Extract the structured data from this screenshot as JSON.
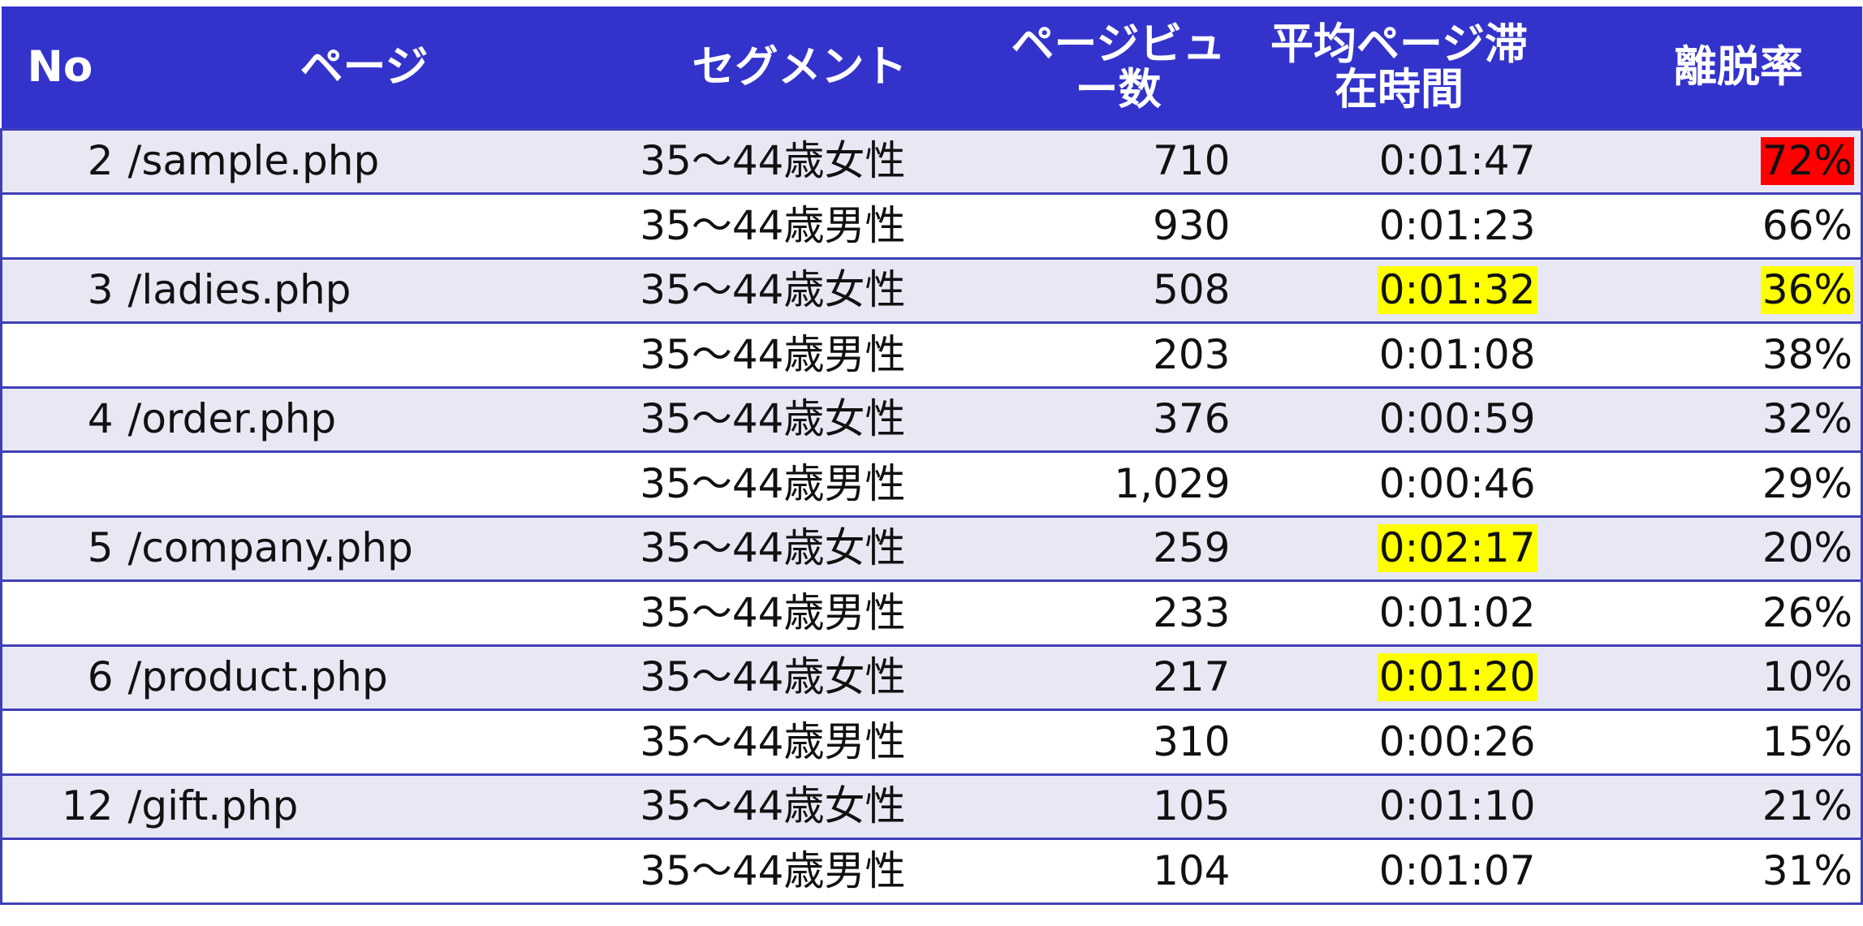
{
  "header": {
    "no": "No",
    "page": "ページ",
    "segment": "セグメント",
    "pageviews_line1": "ページビュ",
    "pageviews_line2": "ー数",
    "avg_time_line1": "平均ページ滞",
    "avg_time_line2": "在時間",
    "bounce": "離脱率"
  },
  "rows": [
    {
      "no": "2",
      "page": "/sample.php",
      "segment": "35～44歳女性",
      "pageviews": "710",
      "avg_time": "0:01:47",
      "bounce": "72%",
      "avg_highlight": "",
      "bounce_highlight": "#ff0000"
    },
    {
      "no": "",
      "page": "",
      "segment": "35～44歳男性",
      "pageviews": "930",
      "avg_time": "0:01:23",
      "bounce": "66%",
      "avg_highlight": "",
      "bounce_highlight": ""
    },
    {
      "no": "3",
      "page": "/ladies.php",
      "segment": "35～44歳女性",
      "pageviews": "508",
      "avg_time": "0:01:32",
      "bounce": "36%",
      "avg_highlight": "#ffff00",
      "bounce_highlight": "#ffff00"
    },
    {
      "no": "",
      "page": "",
      "segment": "35～44歳男性",
      "pageviews": "203",
      "avg_time": "0:01:08",
      "bounce": "38%",
      "avg_highlight": "",
      "bounce_highlight": ""
    },
    {
      "no": "4",
      "page": "/order.php",
      "segment": "35～44歳女性",
      "pageviews": "376",
      "avg_time": "0:00:59",
      "bounce": "32%",
      "avg_highlight": "",
      "bounce_highlight": ""
    },
    {
      "no": "",
      "page": "",
      "segment": "35～44歳男性",
      "pageviews": "1,029",
      "avg_time": "0:00:46",
      "bounce": "29%",
      "avg_highlight": "",
      "bounce_highlight": ""
    },
    {
      "no": "5",
      "page": "/company.php",
      "segment": "35～44歳女性",
      "pageviews": "259",
      "avg_time": "0:02:17",
      "bounce": "20%",
      "avg_highlight": "#ffff00",
      "bounce_highlight": ""
    },
    {
      "no": "",
      "page": "",
      "segment": "35～44歳男性",
      "pageviews": "233",
      "avg_time": "0:01:02",
      "bounce": "26%",
      "avg_highlight": "",
      "bounce_highlight": ""
    },
    {
      "no": "6",
      "page": "/product.php",
      "segment": "35～44歳女性",
      "pageviews": "217",
      "avg_time": "0:01:20",
      "bounce": "10%",
      "avg_highlight": "#ffff00",
      "bounce_highlight": ""
    },
    {
      "no": "",
      "page": "",
      "segment": "35～44歳男性",
      "pageviews": "310",
      "avg_time": "0:00:26",
      "bounce": "15%",
      "avg_highlight": "",
      "bounce_highlight": ""
    },
    {
      "no": "12",
      "page": "/gift.php",
      "segment": "35～44歳女性",
      "pageviews": "105",
      "avg_time": "0:01:10",
      "bounce": "21%",
      "avg_highlight": "",
      "bounce_highlight": ""
    },
    {
      "no": "",
      "page": "",
      "segment": "35～44歳男性",
      "pageviews": "104",
      "avg_time": "0:01:07",
      "bounce": "31%",
      "avg_highlight": "",
      "bounce_highlight": ""
    }
  ],
  "colors": {
    "header_bg": "#3333cc",
    "shaded_row_bg": "#e8e8f4",
    "grid_line": "#3f3fb8"
  }
}
